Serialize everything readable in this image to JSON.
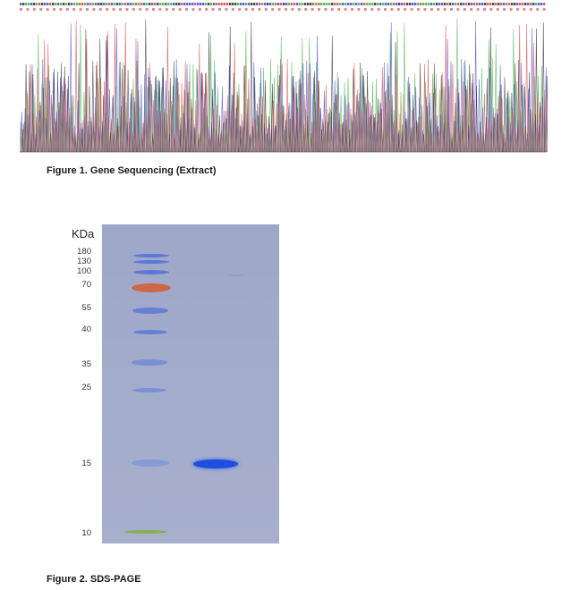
{
  "figure1": {
    "caption": "Figure 1. Gene Sequencing (Extract)",
    "base_colors": {
      "A": "#3aa83a",
      "C": "#3a3ad6",
      "G": "#222222",
      "T": "#d63a3a"
    }
  },
  "figure2": {
    "caption": "Figure 2. SDS-PAGE",
    "unit_label": "KDa",
    "markers": [
      "180",
      "130",
      "100",
      "70",
      "55",
      "40",
      "35",
      "25",
      "15",
      "10"
    ],
    "ladder_colors": {
      "default": "#5a78d8",
      "prestained_70": "#d0603a",
      "prestained_10": "#7fb04a"
    },
    "sample_band_color": "#1a4fe0"
  }
}
